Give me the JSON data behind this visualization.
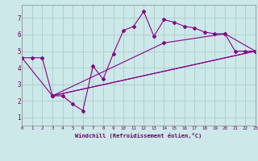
{
  "xlabel": "Windchill (Refroidissement éolien,°C)",
  "background_color": "#cce8e8",
  "grid_color": "#aacccc",
  "line_color": "#880088",
  "xlim": [
    0,
    23
  ],
  "ylim": [
    0.5,
    7.8
  ],
  "xticks": [
    0,
    1,
    2,
    3,
    4,
    5,
    6,
    7,
    8,
    9,
    10,
    11,
    12,
    13,
    14,
    15,
    16,
    17,
    18,
    19,
    20,
    21,
    22,
    23
  ],
  "yticks": [
    1,
    2,
    3,
    4,
    5,
    6,
    7
  ],
  "series1": [
    [
      0,
      4.6
    ],
    [
      1,
      4.6
    ],
    [
      2,
      4.6
    ],
    [
      3,
      2.3
    ],
    [
      4,
      2.3
    ],
    [
      5,
      1.8
    ],
    [
      6,
      1.4
    ],
    [
      7,
      4.1
    ],
    [
      8,
      3.3
    ],
    [
      9,
      4.85
    ],
    [
      10,
      6.25
    ],
    [
      11,
      6.5
    ],
    [
      12,
      7.4
    ],
    [
      13,
      5.9
    ],
    [
      14,
      6.9
    ],
    [
      15,
      6.75
    ],
    [
      16,
      6.5
    ],
    [
      17,
      6.4
    ],
    [
      18,
      6.15
    ],
    [
      19,
      6.05
    ],
    [
      20,
      6.05
    ],
    [
      21,
      5.0
    ],
    [
      22,
      5.0
    ],
    [
      23,
      5.0
    ]
  ],
  "series2": [
    [
      0,
      4.6
    ],
    [
      3,
      2.3
    ],
    [
      23,
      5.0
    ]
  ],
  "series3": [
    [
      3,
      2.3
    ],
    [
      14,
      5.5
    ],
    [
      20,
      6.05
    ],
    [
      23,
      5.0
    ]
  ],
  "series4": [
    [
      3,
      2.3
    ],
    [
      23,
      5.0
    ]
  ]
}
